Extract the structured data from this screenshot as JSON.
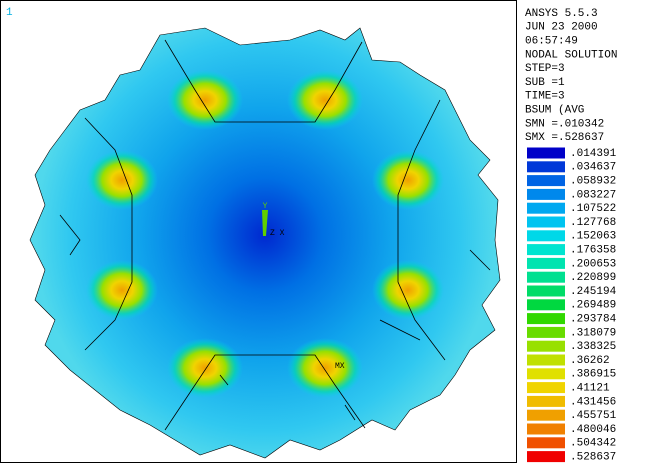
{
  "window_number": "1",
  "header": [
    "ANSYS 5.5.3",
    "JUN 23 2000",
    "06:57:49",
    "NODAL SOLUTION",
    "STEP=3",
    "SUB =1",
    "TIME=3",
    "BSUM      (AVG",
    "SMN =.010342",
    "SMX =.528637"
  ],
  "legend": [
    {
      "label": ".014391",
      "color": "#0000c8"
    },
    {
      "label": ".034637",
      "color": "#0038d8"
    },
    {
      "label": ".058932",
      "color": "#0064e4"
    },
    {
      "label": ".083227",
      "color": "#0088ec"
    },
    {
      "label": ".107522",
      "color": "#00a8f0"
    },
    {
      "label": ".127768",
      "color": "#00c4f0"
    },
    {
      "label": ".152063",
      "color": "#00d8e8"
    },
    {
      "label": ".176358",
      "color": "#00e4d0"
    },
    {
      "label": ".200653",
      "color": "#00e4b0"
    },
    {
      "label": ".220899",
      "color": "#00e090"
    },
    {
      "label": ".245194",
      "color": "#00dc68"
    },
    {
      "label": ".269489",
      "color": "#00d840"
    },
    {
      "label": ".293784",
      "color": "#30d800"
    },
    {
      "label": ".318079",
      "color": "#68dc00"
    },
    {
      "label": ".338325",
      "color": "#98e000"
    },
    {
      "label": ".36262",
      "color": "#c0e000"
    },
    {
      "label": ".386915",
      "color": "#e0e000"
    },
    {
      "label": ".41121",
      "color": "#f0d400"
    },
    {
      "label": ".431456",
      "color": "#f0bc00"
    },
    {
      "label": ".455751",
      "color": "#f0a000"
    },
    {
      "label": ".480046",
      "color": "#f08000"
    },
    {
      "label": ".504342",
      "color": "#f05000"
    },
    {
      "label": ".528637",
      "color": "#f00000"
    }
  ],
  "triad": {
    "y": "Y",
    "zx": "Z X"
  },
  "max_marker": "MX"
}
